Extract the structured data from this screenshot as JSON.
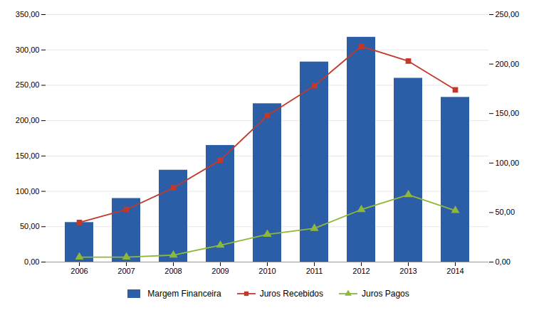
{
  "chart_data": {
    "type": "bar",
    "categories": [
      "2006",
      "2007",
      "2008",
      "2009",
      "2010",
      "2011",
      "2012",
      "2013",
      "2014"
    ],
    "series": [
      {
        "name": "Margem Financeira",
        "type": "bar",
        "color": "#2B5EA7",
        "values": [
          56,
          90,
          130,
          165,
          224,
          283,
          318,
          260,
          233
        ]
      },
      {
        "name": "Juros Recebidos",
        "type": "line",
        "color": "#C0392B",
        "marker": "square",
        "axis": "y2",
        "values": [
          40,
          53,
          75,
          103,
          148,
          178,
          218,
          203,
          174
        ]
      },
      {
        "name": "Juros Pagos",
        "type": "line",
        "color": "#8DB83A",
        "marker": "triangle",
        "axis": "y2",
        "values": [
          5,
          5,
          7,
          17,
          28,
          34,
          53,
          68,
          52
        ]
      }
    ],
    "ylim": [
      0,
      350
    ],
    "yticks": [
      {
        "value": 0,
        "label": "0,00"
      },
      {
        "value": 50,
        "label": "50,00"
      },
      {
        "value": 100,
        "label": "100,00"
      },
      {
        "value": 150,
        "label": "150,00"
      },
      {
        "value": 200,
        "label": "200,00"
      },
      {
        "value": 250,
        "label": "250,00"
      },
      {
        "value": 300,
        "label": "300,00"
      },
      {
        "value": 350,
        "label": "350,00"
      }
    ],
    "y2lim": [
      0,
      250
    ],
    "y2ticks": [
      {
        "value": 0,
        "label": "0,00"
      },
      {
        "value": 50,
        "label": "50,00"
      },
      {
        "value": 100,
        "label": "100,00"
      },
      {
        "value": 150,
        "label": "150,00"
      },
      {
        "value": 200,
        "label": "200,00"
      },
      {
        "value": 250,
        "label": "250,00"
      }
    ],
    "grid": true,
    "legend": "bottom"
  }
}
